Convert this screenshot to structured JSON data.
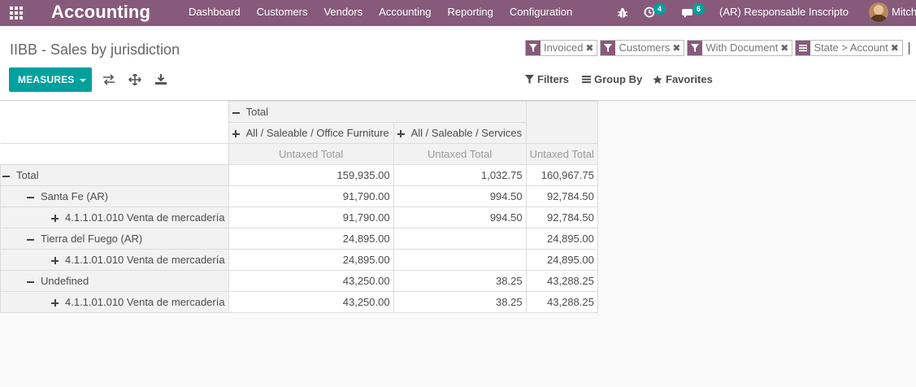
{
  "navbar": {
    "brand": "Accounting",
    "menu": [
      "Dashboard",
      "Customers",
      "Vendors",
      "Accounting",
      "Reporting",
      "Configuration"
    ],
    "activity_count": "4",
    "message_count": "6",
    "company": "(AR) Responsable Inscripto",
    "user": "Mitch"
  },
  "control_panel": {
    "breadcrumb": "IIBB - Sales by jurisdiction",
    "facets": [
      {
        "icon": "filter-icon",
        "label": "Invoiced"
      },
      {
        "icon": "filter-icon",
        "label": "Customers"
      },
      {
        "icon": "filter-icon",
        "label": "With Document"
      },
      {
        "icon": "groupby-icon",
        "label": "State > Account"
      }
    ],
    "measures_label": "MEASURES",
    "filters_label": "Filters",
    "groupby_label": "Group By",
    "favorites_label": "Favorites"
  },
  "pivot": {
    "col_total_header": "Total",
    "col_groups": [
      "All / Saleable / Office Furniture",
      "All / Saleable / Services"
    ],
    "measure": "Untaxed Total",
    "rows": [
      {
        "label": "Total",
        "values": [
          "159,935.00",
          "1,032.75",
          "160,967.75"
        ],
        "level": 0,
        "sign": "minus",
        "bold_all": true
      },
      {
        "label": "Santa Fe (AR)",
        "values": [
          "91,790.00",
          "994.50",
          "92,784.50"
        ],
        "level": 1,
        "sign": "minus"
      },
      {
        "label": "4.1.1.01.010 Venta de mercadería",
        "values": [
          "91,790.00",
          "994.50",
          "92,784.50"
        ],
        "level": 2,
        "sign": "plus"
      },
      {
        "label": "Tierra del Fuego (AR)",
        "values": [
          "24,895.00",
          "",
          "24,895.00"
        ],
        "level": 1,
        "sign": "minus"
      },
      {
        "label": "4.1.1.01.010 Venta de mercadería",
        "values": [
          "24,895.00",
          "",
          "24,895.00"
        ],
        "level": 2,
        "sign": "plus"
      },
      {
        "label": "Undefined",
        "values": [
          "43,250.00",
          "38.25",
          "43,288.25"
        ],
        "level": 1,
        "sign": "minus"
      },
      {
        "label": "4.1.1.01.010 Venta de mercadería",
        "values": [
          "43,250.00",
          "38.25",
          "43,288.25"
        ],
        "level": 2,
        "sign": "plus"
      }
    ]
  }
}
